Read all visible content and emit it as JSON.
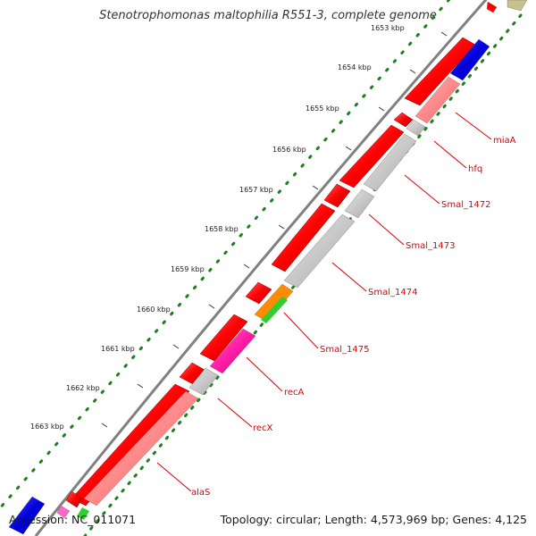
{
  "title": "Stenotrophomonas maltophilia R551-3, complete genome",
  "accession": "Accession: NC_011071",
  "topology": "Topology: circular; Length: 4,573,969 bp; Genes: 4,125",
  "kbp_ticks": [
    "1653 kbp",
    "1654 kbp",
    "1655 kbp",
    "1656 kbp",
    "1657 kbp",
    "1658 kbp",
    "1659 kbp",
    "1660 kbp",
    "1661 kbp",
    "1662 kbp",
    "1663 kbp"
  ],
  "gene_labels": [
    "miaA",
    "hfq",
    "Smal_1472",
    "Smal_1473",
    "Smal_1474",
    "Smal_1475",
    "recA",
    "recX",
    "alaS"
  ],
  "colors": {
    "cds_forward": "#ff0000",
    "cds_reverse": "#ff0000",
    "blast_hit": "#ff8a8a",
    "no_hit": "#c8c8c8",
    "blue_hit": "#0000dd",
    "orange_hit": "#ff8c00",
    "green_hit": "#33cc33",
    "magenta_hit": "#ff1ca6",
    "khaki": "#c8c090",
    "backbone": "#808080",
    "gc_dots": "#1e7f1e",
    "label": "#e00000"
  }
}
